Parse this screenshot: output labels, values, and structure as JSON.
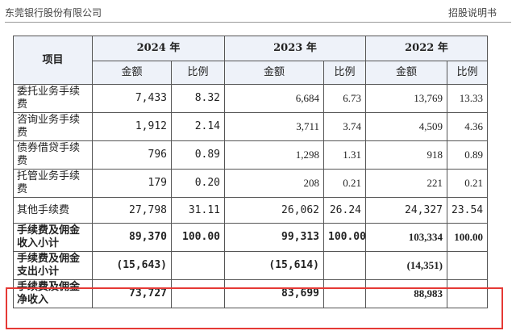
{
  "header": {
    "company": "东莞银行股份有限公司",
    "doc": "招股说明书"
  },
  "table": {
    "item_header": "项目",
    "years": [
      "2024 年",
      "2023 年",
      "2022 年"
    ],
    "sub_headers": [
      "金额",
      "比例",
      "金额",
      "比例",
      "金额",
      "比例"
    ],
    "rows": [
      {
        "label": "委托业务手续费",
        "cells": [
          "7,433",
          "8.32",
          "6,684",
          "6.73",
          "13,769",
          "13.33"
        ]
      },
      {
        "label": "咨询业务手续费",
        "cells": [
          "1,912",
          "2.14",
          "3,711",
          "3.74",
          "4,509",
          "4.36"
        ]
      },
      {
        "label": "债券借贷手续费",
        "cells": [
          "796",
          "0.89",
          "1,298",
          "1.31",
          "918",
          "0.89"
        ]
      },
      {
        "label": "托管业务手续费",
        "cells": [
          "179",
          "0.20",
          "208",
          "0.21",
          "221",
          "0.21"
        ]
      },
      {
        "label": "其他手续费",
        "cells": [
          "27,798",
          "31.11",
          "26,062",
          "26.24",
          "24,327",
          "23.54"
        ]
      },
      {
        "label": "手续费及佣金收入小计",
        "cells": [
          "89,370",
          "100.00",
          "99,313",
          "100.00",
          "103,334",
          "100.00"
        ]
      },
      {
        "label": "手续费及佣金支出小计",
        "cells": [
          "(15,643)",
          "",
          "(15,614)",
          "",
          "(14,351)",
          ""
        ]
      },
      {
        "label": "手续费及佣金净收入",
        "cells": [
          "73,727",
          "",
          "83,699",
          "",
          "88,983",
          ""
        ]
      }
    ]
  },
  "highlight_color": "#e53935"
}
